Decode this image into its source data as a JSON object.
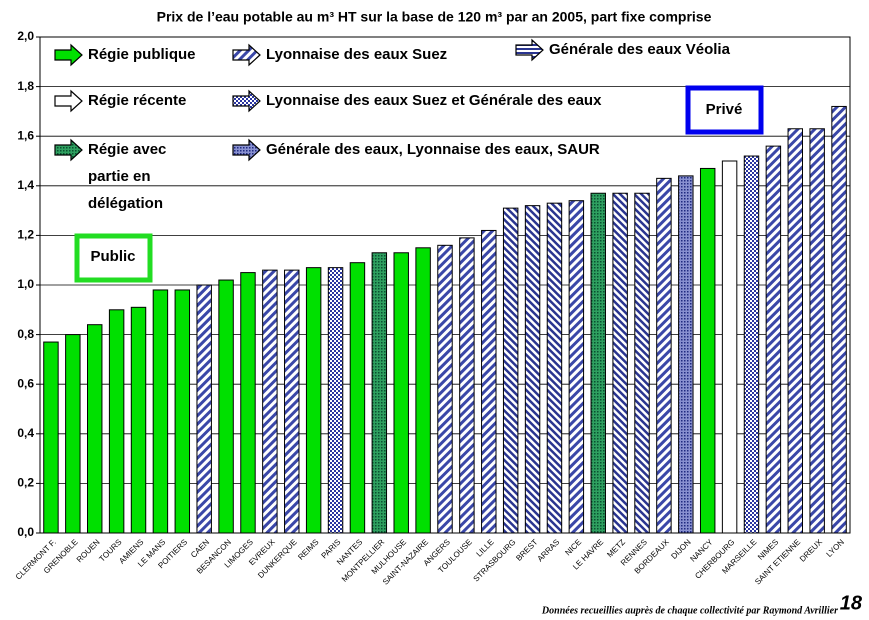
{
  "chart_data": {
    "type": "bar",
    "title": "Prix de l’eau potable au m³ HT sur la base de 120 m³ par an 2005, part fixe comprise",
    "categories": [
      "CLERMONT F.",
      "GRENOBLE",
      "ROUEN",
      "TOURS",
      "AMIENS",
      "LE MANS",
      "POITIERS",
      "CAEN",
      "BESANCON",
      "LIMOGES",
      "EVREUX",
      "DUNKERQUE",
      "REIMS",
      "PARIS",
      "NANTES",
      "MONTPELLIER",
      "MULHOUSE",
      "SAINT-NAZAIRE",
      "ANGERS",
      "TOULOUSE",
      "LILLE",
      "STRASBOURG",
      "BREST",
      "ARRAS",
      "NICE",
      "LE HAVRE",
      "METZ",
      "RENNES",
      "BORDEAUX",
      "DIJON",
      "NANCY",
      "CHERBOURG",
      "MARSEILLE",
      "NIMES",
      "SAINT ETIENNE",
      "DREUX",
      "LYON"
    ],
    "values": [
      0.77,
      0.8,
      0.84,
      0.9,
      0.91,
      0.98,
      0.98,
      1.0,
      1.02,
      1.05,
      1.06,
      1.06,
      1.07,
      1.07,
      1.09,
      1.13,
      1.13,
      1.15,
      1.16,
      1.19,
      1.22,
      1.31,
      1.32,
      1.33,
      1.34,
      1.37,
      1.37,
      1.37,
      1.43,
      1.44,
      1.47,
      1.5,
      1.52,
      1.56,
      1.63,
      1.63,
      1.72
    ],
    "kinds": [
      "publique",
      "publique",
      "publique",
      "publique",
      "publique",
      "publique",
      "publique",
      "lyonnaise",
      "publique",
      "publique",
      "lyonnaise",
      "lyonnaise",
      "publique",
      "mixte",
      "publique",
      "delegation",
      "publique",
      "publique",
      "lyonnaise",
      "lyonnaise",
      "lyonnaise",
      "veolia",
      "veolia",
      "veolia",
      "lyonnaise",
      "delegation",
      "veolia",
      "veolia",
      "lyonnaise",
      "saur",
      "publique",
      "recente",
      "mixte",
      "lyonnaise",
      "lyonnaise",
      "lyonnaise",
      "lyonnaise"
    ],
    "legend": [
      {
        "kind": "publique",
        "lines": [
          "Régie publique"
        ]
      },
      {
        "kind": "recente",
        "lines": [
          "Régie récente"
        ]
      },
      {
        "kind": "delegation",
        "lines": [
          "Régie avec",
          "partie en",
          "délégation"
        ]
      },
      {
        "kind": "lyonnaise",
        "lines": [
          "Lyonnaise des eaux Suez"
        ]
      },
      {
        "kind": "mixte",
        "lines": [
          "Lyonnaise des eaux Suez et Générale des eaux"
        ]
      },
      {
        "kind": "saur",
        "lines": [
          "Générale des eaux, Lyonnaise des eaux, SAUR"
        ]
      },
      {
        "kind": "veolia",
        "lines": [
          "Générale des eaux Véolia"
        ]
      }
    ],
    "annotations": [
      "Public",
      "Privé"
    ],
    "footer": "Données recueillies auprès de chaque collectivité par Raymond Avrillier",
    "page_number": "18",
    "ylim": [
      0,
      2
    ],
    "yticks": [
      {
        "value": 0,
        "label": "0,0"
      },
      {
        "value": 0.2,
        "label": "0,2"
      },
      {
        "value": 0.4,
        "label": "0,4"
      },
      {
        "value": 0.6,
        "label": "0,6"
      },
      {
        "value": 0.8,
        "label": "0,8"
      },
      {
        "value": 1.0,
        "label": "1,0"
      },
      {
        "value": 1.2,
        "label": "1,2"
      },
      {
        "value": 1.4,
        "label": "1,4"
      },
      {
        "value": 1.6,
        "label": "1,6"
      },
      {
        "value": 1.8,
        "label": "1,8"
      },
      {
        "value": 2.0,
        "label": "2,0"
      }
    ],
    "grid": true
  }
}
